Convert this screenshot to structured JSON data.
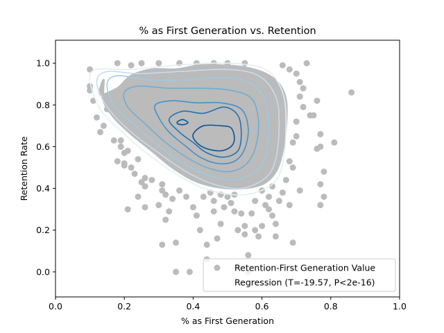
{
  "chart_data": {
    "type": "scatter",
    "title": "% as First Generation vs. Retention",
    "xlabel": "% as First Generation",
    "ylabel": "Retention Rate",
    "xlim": [
      0.0,
      1.0
    ],
    "ylim": [
      -0.12,
      1.11
    ],
    "xticks": [
      "0.0",
      "0.2",
      "0.4",
      "0.6",
      "0.8",
      "1.0"
    ],
    "yticks": [
      "0.0",
      "0.2",
      "0.4",
      "0.6",
      "0.8",
      "1.0"
    ],
    "grid": false,
    "legend_position": "lower-right",
    "legend": [
      {
        "label": "Retention-First Generation Value",
        "marker": "circle",
        "color": "#bbbbbb"
      },
      {
        "label": "Regression (T=-19.57, P<2e-16)",
        "marker": "none",
        "color": "#ffffff"
      }
    ],
    "scatter_color": "#bbbbbb",
    "core_cloud": [
      {
        "x": 0.14,
        "y": 0.92
      },
      {
        "x": 0.13,
        "y": 0.85
      },
      {
        "x": 0.18,
        "y": 0.88
      },
      {
        "x": 0.22,
        "y": 0.94
      },
      {
        "x": 0.28,
        "y": 0.97
      },
      {
        "x": 0.35,
        "y": 0.97
      },
      {
        "x": 0.42,
        "y": 0.99
      },
      {
        "x": 0.48,
        "y": 0.99
      },
      {
        "x": 0.55,
        "y": 0.98
      },
      {
        "x": 0.61,
        "y": 0.95
      },
      {
        "x": 0.65,
        "y": 0.9
      },
      {
        "x": 0.67,
        "y": 0.82
      },
      {
        "x": 0.67,
        "y": 0.7
      },
      {
        "x": 0.66,
        "y": 0.58
      },
      {
        "x": 0.64,
        "y": 0.48
      },
      {
        "x": 0.6,
        "y": 0.42
      },
      {
        "x": 0.53,
        "y": 0.4
      },
      {
        "x": 0.46,
        "y": 0.41
      },
      {
        "x": 0.4,
        "y": 0.44
      },
      {
        "x": 0.34,
        "y": 0.5
      },
      {
        "x": 0.28,
        "y": 0.58
      },
      {
        "x": 0.22,
        "y": 0.66
      },
      {
        "x": 0.17,
        "y": 0.74
      },
      {
        "x": 0.14,
        "y": 0.82
      }
    ],
    "density_contours": [
      {
        "level": 1,
        "color": "#e3eef9",
        "points": [
          {
            "x": 0.1,
            "y": 0.92
          },
          {
            "x": 0.12,
            "y": 0.97
          },
          {
            "x": 0.22,
            "y": 0.97
          },
          {
            "x": 0.35,
            "y": 0.99
          },
          {
            "x": 0.5,
            "y": 1.0
          },
          {
            "x": 0.61,
            "y": 0.97
          },
          {
            "x": 0.66,
            "y": 0.86
          },
          {
            "x": 0.67,
            "y": 0.7
          },
          {
            "x": 0.66,
            "y": 0.52
          },
          {
            "x": 0.63,
            "y": 0.42
          },
          {
            "x": 0.55,
            "y": 0.37
          },
          {
            "x": 0.45,
            "y": 0.39
          },
          {
            "x": 0.37,
            "y": 0.45
          },
          {
            "x": 0.28,
            "y": 0.55
          },
          {
            "x": 0.2,
            "y": 0.66
          },
          {
            "x": 0.13,
            "y": 0.78
          }
        ]
      },
      {
        "level": 2,
        "color": "#c6dbef",
        "points": [
          {
            "x": 0.12,
            "y": 0.91
          },
          {
            "x": 0.15,
            "y": 0.96
          },
          {
            "x": 0.24,
            "y": 0.95
          },
          {
            "x": 0.36,
            "y": 0.96
          },
          {
            "x": 0.5,
            "y": 0.97
          },
          {
            "x": 0.59,
            "y": 0.94
          },
          {
            "x": 0.64,
            "y": 0.84
          },
          {
            "x": 0.65,
            "y": 0.7
          },
          {
            "x": 0.64,
            "y": 0.54
          },
          {
            "x": 0.61,
            "y": 0.45
          },
          {
            "x": 0.54,
            "y": 0.4
          },
          {
            "x": 0.46,
            "y": 0.42
          },
          {
            "x": 0.38,
            "y": 0.48
          },
          {
            "x": 0.3,
            "y": 0.57
          },
          {
            "x": 0.22,
            "y": 0.67
          },
          {
            "x": 0.15,
            "y": 0.79
          }
        ]
      },
      {
        "level": 3,
        "color": "#9ecae1",
        "points": [
          {
            "x": 0.15,
            "y": 0.9
          },
          {
            "x": 0.18,
            "y": 0.94
          },
          {
            "x": 0.27,
            "y": 0.92
          },
          {
            "x": 0.38,
            "y": 0.92
          },
          {
            "x": 0.5,
            "y": 0.93
          },
          {
            "x": 0.57,
            "y": 0.9
          },
          {
            "x": 0.61,
            "y": 0.82
          },
          {
            "x": 0.62,
            "y": 0.69
          },
          {
            "x": 0.61,
            "y": 0.55
          },
          {
            "x": 0.58,
            "y": 0.48
          },
          {
            "x": 0.52,
            "y": 0.44
          },
          {
            "x": 0.45,
            "y": 0.46
          },
          {
            "x": 0.38,
            "y": 0.51
          },
          {
            "x": 0.31,
            "y": 0.59
          },
          {
            "x": 0.24,
            "y": 0.69
          },
          {
            "x": 0.17,
            "y": 0.8
          }
        ]
      },
      {
        "level": 4,
        "color": "#6baed6",
        "points": [
          {
            "x": 0.2,
            "y": 0.86
          },
          {
            "x": 0.24,
            "y": 0.89
          },
          {
            "x": 0.33,
            "y": 0.88
          },
          {
            "x": 0.43,
            "y": 0.88
          },
          {
            "x": 0.51,
            "y": 0.87
          },
          {
            "x": 0.57,
            "y": 0.83
          },
          {
            "x": 0.59,
            "y": 0.72
          },
          {
            "x": 0.58,
            "y": 0.59
          },
          {
            "x": 0.55,
            "y": 0.51
          },
          {
            "x": 0.5,
            "y": 0.48
          },
          {
            "x": 0.44,
            "y": 0.5
          },
          {
            "x": 0.38,
            "y": 0.55
          },
          {
            "x": 0.32,
            "y": 0.62
          },
          {
            "x": 0.26,
            "y": 0.71
          },
          {
            "x": 0.21,
            "y": 0.79
          }
        ]
      },
      {
        "level": 5,
        "color": "#4292c6",
        "points": [
          {
            "x": 0.29,
            "y": 0.8
          },
          {
            "x": 0.34,
            "y": 0.82
          },
          {
            "x": 0.41,
            "y": 0.81
          },
          {
            "x": 0.48,
            "y": 0.81
          },
          {
            "x": 0.54,
            "y": 0.78
          },
          {
            "x": 0.56,
            "y": 0.69
          },
          {
            "x": 0.55,
            "y": 0.59
          },
          {
            "x": 0.52,
            "y": 0.53
          },
          {
            "x": 0.47,
            "y": 0.52
          },
          {
            "x": 0.42,
            "y": 0.55
          },
          {
            "x": 0.38,
            "y": 0.6
          },
          {
            "x": 0.33,
            "y": 0.67
          },
          {
            "x": 0.3,
            "y": 0.74
          }
        ]
      },
      {
        "level": 6,
        "color": "#2171b5",
        "points": [
          {
            "x": 0.33,
            "y": 0.73
          },
          {
            "x": 0.37,
            "y": 0.77
          },
          {
            "x": 0.43,
            "y": 0.76
          },
          {
            "x": 0.49,
            "y": 0.79
          },
          {
            "x": 0.53,
            "y": 0.75
          },
          {
            "x": 0.54,
            "y": 0.66
          },
          {
            "x": 0.53,
            "y": 0.58
          },
          {
            "x": 0.49,
            "y": 0.55
          },
          {
            "x": 0.44,
            "y": 0.57
          },
          {
            "x": 0.4,
            "y": 0.62
          },
          {
            "x": 0.36,
            "y": 0.67
          }
        ]
      },
      {
        "level": 7,
        "color": "#08519c",
        "points": [
          {
            "x": 0.4,
            "y": 0.66
          },
          {
            "x": 0.43,
            "y": 0.7
          },
          {
            "x": 0.48,
            "y": 0.7
          },
          {
            "x": 0.51,
            "y": 0.69
          },
          {
            "x": 0.52,
            "y": 0.64
          },
          {
            "x": 0.51,
            "y": 0.6
          },
          {
            "x": 0.48,
            "y": 0.58
          },
          {
            "x": 0.44,
            "y": 0.59
          },
          {
            "x": 0.41,
            "y": 0.62
          }
        ]
      },
      {
        "level": 8,
        "color": "#08519c",
        "points": [
          {
            "x": 0.355,
            "y": 0.72
          },
          {
            "x": 0.37,
            "y": 0.73
          },
          {
            "x": 0.385,
            "y": 0.715
          },
          {
            "x": 0.37,
            "y": 0.705
          },
          {
            "x": 0.355,
            "y": 0.71
          }
        ]
      }
    ],
    "outer_points": [
      {
        "x": 0.1,
        "y": 0.97
      },
      {
        "x": 0.1,
        "y": 0.89
      },
      {
        "x": 0.1,
        "y": 0.87
      },
      {
        "x": 0.11,
        "y": 0.82
      },
      {
        "x": 0.12,
        "y": 0.74
      },
      {
        "x": 0.13,
        "y": 0.67
      },
      {
        "x": 0.15,
        "y": 0.78
      },
      {
        "x": 0.18,
        "y": 1.0
      },
      {
        "x": 0.19,
        "y": 0.63
      },
      {
        "x": 0.19,
        "y": 0.6
      },
      {
        "x": 0.2,
        "y": 0.57
      },
      {
        "x": 0.18,
        "y": 0.53
      },
      {
        "x": 0.2,
        "y": 0.52
      },
      {
        "x": 0.2,
        "y": 0.51
      },
      {
        "x": 0.22,
        "y": 0.5
      },
      {
        "x": 0.23,
        "y": 0.47
      },
      {
        "x": 0.26,
        "y": 0.45
      },
      {
        "x": 0.25,
        "y": 0.43
      },
      {
        "x": 0.26,
        "y": 0.41
      },
      {
        "x": 0.24,
        "y": 0.36
      },
      {
        "x": 0.26,
        "y": 0.31
      },
      {
        "x": 0.21,
        "y": 0.3
      },
      {
        "x": 0.28,
        "y": 0.44
      },
      {
        "x": 0.31,
        "y": 0.42
      },
      {
        "x": 0.31,
        "y": 0.39
      },
      {
        "x": 0.32,
        "y": 0.37
      },
      {
        "x": 0.3,
        "y": 0.32
      },
      {
        "x": 0.34,
        "y": 0.35
      },
      {
        "x": 0.33,
        "y": 0.29
      },
      {
        "x": 0.32,
        "y": 0.25
      },
      {
        "x": 0.31,
        "y": 0.13
      },
      {
        "x": 0.35,
        "y": 0.14
      },
      {
        "x": 0.35,
        "y": 0.0
      },
      {
        "x": 0.39,
        "y": 0.0
      },
      {
        "x": 0.4,
        "y": 0.31
      },
      {
        "x": 0.41,
        "y": 0.27
      },
      {
        "x": 0.42,
        "y": 0.2
      },
      {
        "x": 0.44,
        "y": 0.13
      },
      {
        "x": 0.44,
        "y": 0.06
      },
      {
        "x": 0.45,
        "y": 0.38
      },
      {
        "x": 0.46,
        "y": 0.34
      },
      {
        "x": 0.46,
        "y": 0.29
      },
      {
        "x": 0.47,
        "y": 0.16
      },
      {
        "x": 0.48,
        "y": 0.23
      },
      {
        "x": 0.49,
        "y": 0.31
      },
      {
        "x": 0.5,
        "y": 0.36
      },
      {
        "x": 0.51,
        "y": 0.33
      },
      {
        "x": 0.52,
        "y": 0.29
      },
      {
        "x": 0.53,
        "y": 0.03
      },
      {
        "x": 0.53,
        "y": 0.2
      },
      {
        "x": 0.54,
        "y": 0.28
      },
      {
        "x": 0.55,
        "y": 0.22
      },
      {
        "x": 0.55,
        "y": 0.18
      },
      {
        "x": 0.56,
        "y": 0.08
      },
      {
        "x": 0.56,
        "y": 0.0
      },
      {
        "x": 0.57,
        "y": 0.28
      },
      {
        "x": 0.58,
        "y": 0.2
      },
      {
        "x": 0.59,
        "y": 0.17
      },
      {
        "x": 0.6,
        "y": 0.22
      },
      {
        "x": 0.61,
        "y": 0.32
      },
      {
        "x": 0.62,
        "y": 0.3
      },
      {
        "x": 0.63,
        "y": 0.27
      },
      {
        "x": 0.64,
        "y": 0.23
      },
      {
        "x": 0.64,
        "y": 0.17
      },
      {
        "x": 0.65,
        "y": 0.34
      },
      {
        "x": 0.66,
        "y": 0.38
      },
      {
        "x": 0.67,
        "y": 0.44
      },
      {
        "x": 0.68,
        "y": 0.53
      },
      {
        "x": 0.69,
        "y": 0.62
      },
      {
        "x": 0.69,
        "y": 0.14
      },
      {
        "x": 0.68,
        "y": 0.32
      },
      {
        "x": 0.69,
        "y": 0.5
      },
      {
        "x": 0.7,
        "y": 0.65
      },
      {
        "x": 0.7,
        "y": 0.72
      },
      {
        "x": 0.71,
        "y": 0.39
      },
      {
        "x": 0.71,
        "y": 0.84
      },
      {
        "x": 0.72,
        "y": 0.79
      },
      {
        "x": 0.72,
        "y": 0.88
      },
      {
        "x": 0.73,
        "y": 1.0
      },
      {
        "x": 0.74,
        "y": 0.75
      },
      {
        "x": 0.75,
        "y": 0.75
      },
      {
        "x": 0.76,
        "y": 0.59
      },
      {
        "x": 0.77,
        "y": 0.32
      },
      {
        "x": 0.77,
        "y": 0.6
      },
      {
        "x": 0.77,
        "y": 0.66
      },
      {
        "x": 0.77,
        "y": 0.42
      },
      {
        "x": 0.78,
        "y": 0.48
      },
      {
        "x": 0.78,
        "y": 0.36
      },
      {
        "x": 0.81,
        "y": 0.62
      },
      {
        "x": 0.86,
        "y": 0.86
      },
      {
        "x": 0.76,
        "y": 0.82
      },
      {
        "x": 0.7,
        "y": 0.95
      },
      {
        "x": 0.71,
        "y": 0.91
      },
      {
        "x": 0.68,
        "y": 0.97
      },
      {
        "x": 0.66,
        "y": 0.99
      },
      {
        "x": 0.55,
        "y": 1.0
      },
      {
        "x": 0.5,
        "y": 1.0
      },
      {
        "x": 0.46,
        "y": 1.0
      },
      {
        "x": 0.41,
        "y": 1.0
      },
      {
        "x": 0.36,
        "y": 1.0
      },
      {
        "x": 0.3,
        "y": 1.0
      },
      {
        "x": 0.25,
        "y": 1.0
      },
      {
        "x": 0.22,
        "y": 0.99
      },
      {
        "x": 0.6,
        "y": 0.39
      },
      {
        "x": 0.63,
        "y": 0.41
      },
      {
        "x": 0.52,
        "y": 0.37
      },
      {
        "x": 0.38,
        "y": 0.36
      },
      {
        "x": 0.36,
        "y": 0.39
      },
      {
        "x": 0.43,
        "y": 0.36
      },
      {
        "x": 0.48,
        "y": 0.37
      },
      {
        "x": 0.58,
        "y": 0.34
      },
      {
        "x": 0.62,
        "y": 0.36
      },
      {
        "x": 0.17,
        "y": 0.63
      },
      {
        "x": 0.21,
        "y": 0.58
      },
      {
        "x": 0.24,
        "y": 0.54
      },
      {
        "x": 0.14,
        "y": 0.7
      }
    ]
  }
}
